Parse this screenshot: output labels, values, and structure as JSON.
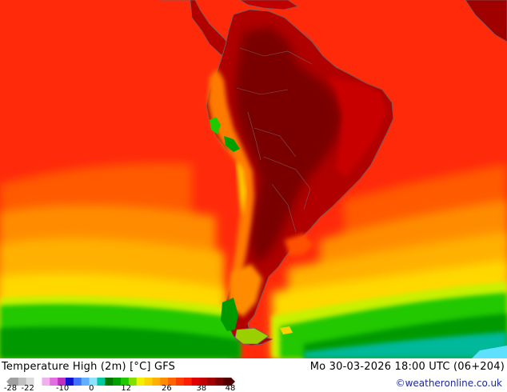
{
  "map": {
    "title": "Temperature High (2m) [°C] GFS",
    "datetime": "Mo 30-03-2026 18:00 UTC (06+204)",
    "credit": "©weatheronline.co.uk"
  },
  "legend": {
    "ticks": [
      "-28",
      "-22",
      "-10",
      "0",
      "12",
      "26",
      "38",
      "48"
    ],
    "colors": [
      "#a0a0a0",
      "#c0c0c0",
      "#dcdcdc",
      "#ffffff",
      "#f0b0f0",
      "#e070e0",
      "#c030c0",
      "#1010d0",
      "#4070ff",
      "#60b0ff",
      "#90e0ff",
      "#00c8a0",
      "#007800",
      "#00a000",
      "#20c800",
      "#80e000",
      "#f0f000",
      "#ffd000",
      "#ffb000",
      "#ff8c00",
      "#ff6400",
      "#ff3c00",
      "#ff1e00",
      "#e00000",
      "#c00000",
      "#a00000",
      "#780000",
      "#500000"
    ]
  },
  "palette": {
    "ocean_warm": "#ff2a0a",
    "ocean_mid": "#ff8c00",
    "ocean_cool": "#ffd000",
    "sea_green": "#20c800",
    "land_hot": "#a00000",
    "land_hottest": "#7a0000",
    "coast": "#7a5a5a"
  }
}
